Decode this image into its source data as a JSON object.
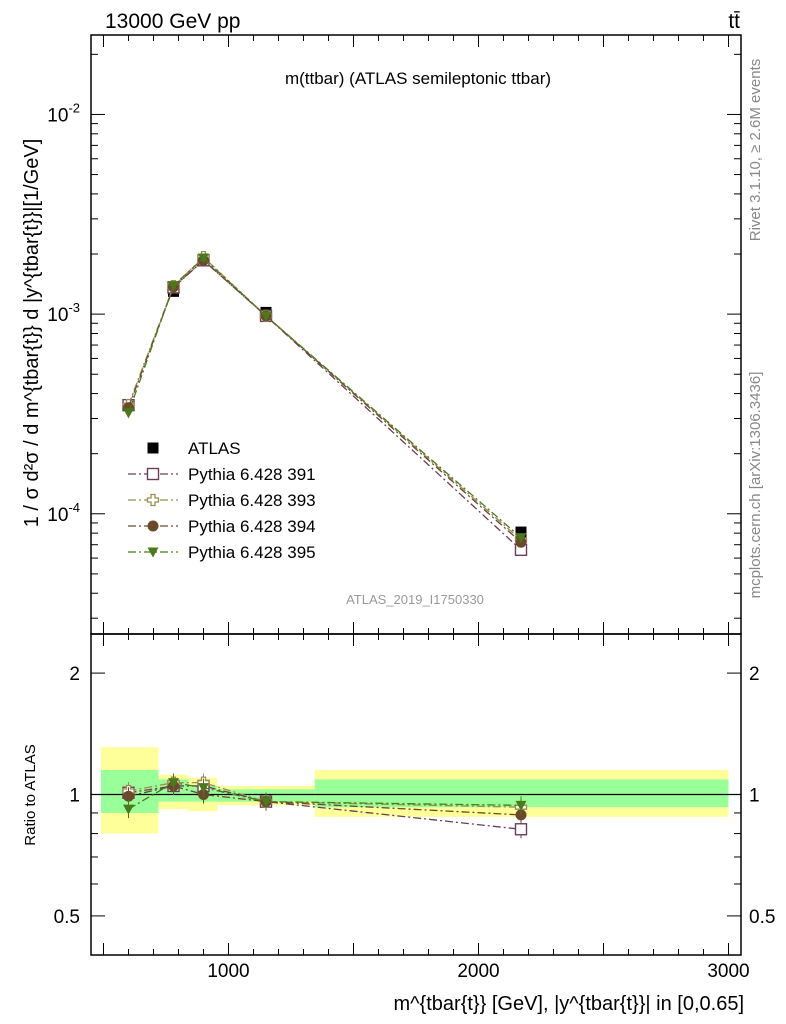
{
  "header": {
    "left": "13000 GeV pp",
    "right": "tt̄"
  },
  "side": {
    "rivet": "Rivet 3.1.10, ≥ 2.6M events",
    "mcplots": "mcplots.cern.ch [arXiv:1306.3436]"
  },
  "chart_data": [
    {
      "type": "line",
      "title": "m(ttbar) (ATLAS semileptonic ttbar)",
      "watermark": "ATLAS_2019_I1750330",
      "ylabel": "1 / σ d²σ / d m^{tbar{t}} d |y^{tbar{t}}|[1/GeV]",
      "xlabel": "m^{tbar{t}} [GeV], |y^{tbar{t}}| in [0,0.65]",
      "y_scale": "log",
      "xlim": [
        450,
        3050
      ],
      "ylim": [
        2.5e-05,
        0.025
      ],
      "x_ticks": [
        "1000",
        "2000",
        "3000"
      ],
      "y_ticks": [
        "10^-4",
        "10^-3",
        "10^-2"
      ],
      "legend_position": "lower-left",
      "x": [
        600,
        780,
        900,
        1150,
        2170
      ],
      "bin_edges": [
        490,
        720,
        840,
        955,
        1345,
        3000
      ],
      "series": [
        {
          "name": "ATLAS",
          "marker": "filled-square",
          "color": "#000000",
          "values": [
            0.00035,
            0.0013,
            0.00185,
            0.00102,
            8.1e-05
          ]
        },
        {
          "name": "Pythia 6.428 391",
          "marker": "open-square",
          "color": "#6b3d5c",
          "dash": "dashdot",
          "values": [
            0.00035,
            0.00136,
            0.00186,
            0.00098,
            6.6e-05
          ]
        },
        {
          "name": "Pythia 6.428 393",
          "marker": "open-cross",
          "color": "#9c8c4e",
          "dash": "dashdot",
          "values": [
            0.00035,
            0.00138,
            0.00193,
            0.00098,
            7.4e-05
          ]
        },
        {
          "name": "Pythia 6.428 394",
          "marker": "filled-circle",
          "color": "#6b4a2b",
          "dash": "dashdot",
          "values": [
            0.00034,
            0.00137,
            0.00186,
            0.00098,
            7.2e-05
          ]
        },
        {
          "name": "Pythia 6.428 395",
          "marker": "filled-triangle-down",
          "color": "#4a7a1a",
          "dash": "dashdot",
          "values": [
            0.00032,
            0.00139,
            0.00191,
            0.00098,
            7.6e-05
          ]
        }
      ]
    },
    {
      "type": "line",
      "ylabel": "Ratio to ATLAS",
      "y_scale": "log",
      "ylim": [
        0.4,
        2.5
      ],
      "y_ticks": [
        "0.5",
        "1",
        "2"
      ],
      "band_green": [
        [
          0.9,
          1.15
        ],
        [
          0.96,
          1.09
        ],
        [
          0.96,
          1.05
        ],
        [
          0.96,
          1.03
        ],
        [
          0.93,
          1.09
        ]
      ],
      "band_yellow": [
        [
          0.8,
          1.31
        ],
        [
          0.92,
          1.12
        ],
        [
          0.91,
          1.1
        ],
        [
          0.94,
          1.05
        ],
        [
          0.88,
          1.15
        ]
      ],
      "series": [
        {
          "name": "Pythia 6.428 391",
          "values": [
            1.01,
            1.05,
            1.05,
            0.96,
            0.82
          ]
        },
        {
          "name": "Pythia 6.428 393",
          "values": [
            1.02,
            1.07,
            1.07,
            0.96,
            0.93
          ]
        },
        {
          "name": "Pythia 6.428 394",
          "values": [
            0.99,
            1.05,
            1.0,
            0.96,
            0.89
          ]
        },
        {
          "name": "Pythia 6.428 395",
          "values": [
            0.92,
            1.07,
            1.04,
            0.96,
            0.94
          ]
        }
      ]
    }
  ]
}
